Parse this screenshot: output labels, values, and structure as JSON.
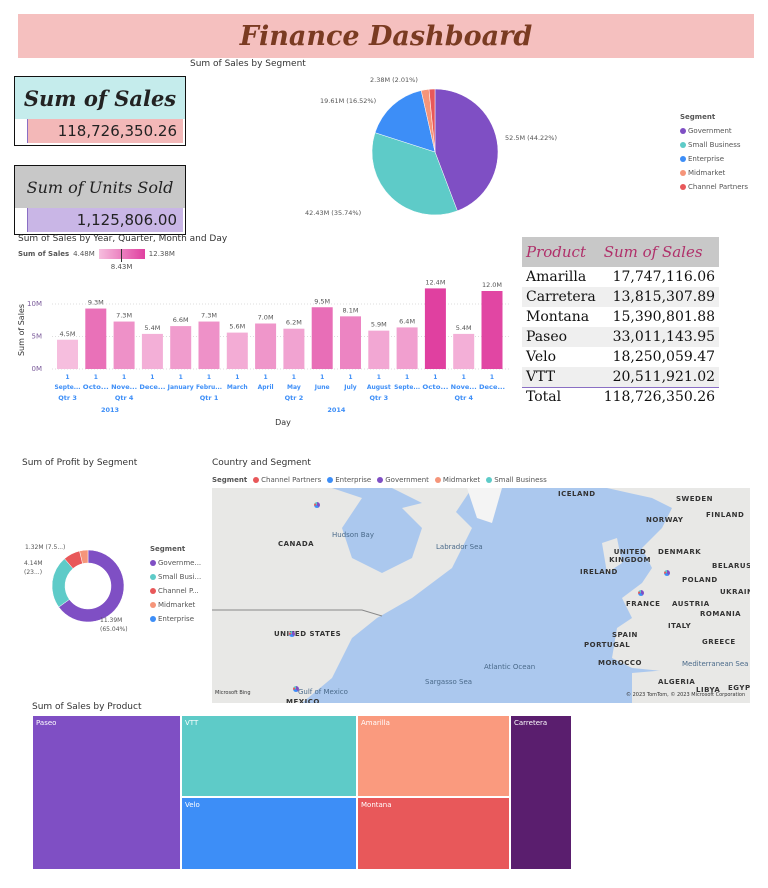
{
  "title": "Finance Dashboard",
  "cards": {
    "sales": {
      "label": "Sum of Sales",
      "value": "118,726,350.26"
    },
    "units": {
      "label": "Sum of Units Sold",
      "value": "1,125,806.00"
    }
  },
  "colors": {
    "Government": "#7f4fc4",
    "Small Business": "#5ecbc8",
    "Enterprise": "#3d8ef7",
    "Midmarket": "#f5957a",
    "Channel Partners": "#e8585a"
  },
  "sales_by_segment": {
    "title": "Sum of Sales by Segment",
    "legend_title": "Segment",
    "chart_data": {
      "type": "pie",
      "title": "Sum of Sales by Segment",
      "slices": [
        {
          "name": "Government",
          "value": 52.5,
          "label": "52.5M (44.22%)",
          "pct": 44.22
        },
        {
          "name": "Small Business",
          "value": 42.43,
          "label": "42.43M (35.74%)",
          "pct": 35.74
        },
        {
          "name": "Enterprise",
          "value": 19.61,
          "label": "19.61M (16.52%)",
          "pct": 16.52
        },
        {
          "name": "Midmarket",
          "value": 2.38,
          "label": "2.38M (2.01%)",
          "pct": 2.01
        },
        {
          "name": "Channel Partners",
          "value": 1.8,
          "label": "",
          "pct": 1.51
        }
      ]
    }
  },
  "sales_by_date": {
    "title": "Sum of Sales by Year, Quarter, Month and Day",
    "gradient_label": "Sum of  Sales",
    "gradient_min": "4.48M",
    "gradient_max": "12.38M",
    "gradient_mid": "8.43M",
    "chart_data": {
      "type": "bar",
      "xlabel": "Day",
      "ylabel": "Sum of Sales",
      "yticks": [
        "0M",
        "5M",
        "10M"
      ],
      "ylim": [
        0,
        13
      ],
      "categories": [
        "Septe...",
        "Octo...",
        "Nove...",
        "Dece...",
        "January",
        "Febru...",
        "March",
        "April",
        "May",
        "June",
        "July",
        "August",
        "Septe...",
        "Octo...",
        "Nove...",
        "Dece..."
      ],
      "day": "1",
      "values": [
        4.5,
        9.3,
        7.3,
        5.4,
        6.6,
        7.3,
        5.6,
        7.0,
        6.2,
        9.5,
        8.1,
        5.9,
        6.4,
        12.4,
        5.4,
        12.0
      ],
      "labels": [
        "4.5M",
        "9.3M",
        "7.3M",
        "5.4M",
        "6.6M",
        "7.3M",
        "5.6M",
        "7.0M",
        "6.2M",
        "9.5M",
        "8.1M",
        "5.9M",
        "6.4M",
        "12.4M",
        "5.4M",
        "12.0M"
      ],
      "quarters": [
        {
          "label": "Qtr 3",
          "span": 1
        },
        {
          "label": "Qtr 4",
          "span": 3
        },
        {
          "label": "Qtr 1",
          "span": 3
        },
        {
          "label": "Qtr 2",
          "span": 3
        },
        {
          "label": "Qtr 3",
          "span": 3
        },
        {
          "label": "Qtr 4",
          "span": 3
        }
      ],
      "years": [
        {
          "label": "2013",
          "span": 4
        },
        {
          "label": "2014",
          "span": 12
        }
      ]
    }
  },
  "product_table": {
    "headers": [
      "Product",
      "Sum of Sales"
    ],
    "rows": [
      [
        "Amarilla",
        "17,747,116.06"
      ],
      [
        "Carretera",
        "13,815,307.89"
      ],
      [
        "Montana",
        "15,390,801.88"
      ],
      [
        "Paseo",
        "33,011,143.95"
      ],
      [
        "Velo",
        "18,250,059.47"
      ],
      [
        "VTT",
        "20,511,921.02"
      ]
    ],
    "total": [
      "Total",
      "118,726,350.26"
    ]
  },
  "profit_by_segment": {
    "title": "Sum of Profit by Segment",
    "legend_title": "Segment",
    "legend": [
      "Governme...",
      "Small Busi...",
      "Channel P...",
      "Midmarket",
      "Enterprise"
    ],
    "chart_data": {
      "type": "pie",
      "slices": [
        {
          "name": "Government",
          "value": 11.39,
          "label": "11.39M",
          "label2": "(65.04%)"
        },
        {
          "name": "Small Business",
          "value": 4.14,
          "label": "4.14M",
          "label2": "(23...)"
        },
        {
          "name": "Channel Partners",
          "value": 1.32,
          "label": "1.32M (7.5...)"
        },
        {
          "name": "Midmarket",
          "value": 0.66,
          "label": ""
        }
      ]
    }
  },
  "map": {
    "title": "Country and Segment",
    "legend_title": "Segment",
    "legend": [
      "Channel Partners",
      "Enterprise",
      "Government",
      "Midmarket",
      "Small Business"
    ],
    "labels": {
      "canada": "CANADA",
      "us": "UNITED STATES",
      "mexico": "MEXICO",
      "iceland": "ICELAND",
      "sweden": "SWEDEN",
      "norway": "NORWAY",
      "finland": "FINLAND",
      "uk": "UNITED KINGDOM",
      "ireland": "IRELAND",
      "denmark": "DENMARK",
      "poland": "POLAND",
      "belarus": "BELARUS",
      "ukraine": "UKRAINE",
      "france": "FRANCE",
      "austria": "AUSTRIA",
      "romania": "ROMANIA",
      "italy": "ITALY",
      "spain": "SPAIN",
      "portugal": "PORTUGAL",
      "greece": "GREECE",
      "morocco": "MOROCCO",
      "algeria": "ALGERIA",
      "libya": "LIBYA",
      "egypt": "EGYPT"
    },
    "seas": {
      "hudson": "Hudson Bay",
      "labrador": "Labrador Sea",
      "atlantic": "Atlantic Ocean",
      "sargasso": "Sargasso Sea",
      "gulf": "Gulf of Mexico",
      "med": "Mediterranean Sea"
    },
    "attribution": "© 2023 TomTom, © 2023 Microsoft Corporation",
    "bing": "Microsoft Bing"
  },
  "treemap": {
    "title": "Sum of Sales by Product",
    "items": [
      "Paseo",
      "VTT",
      "Amarilla",
      "Carretera",
      "Velo",
      "Montana"
    ]
  }
}
